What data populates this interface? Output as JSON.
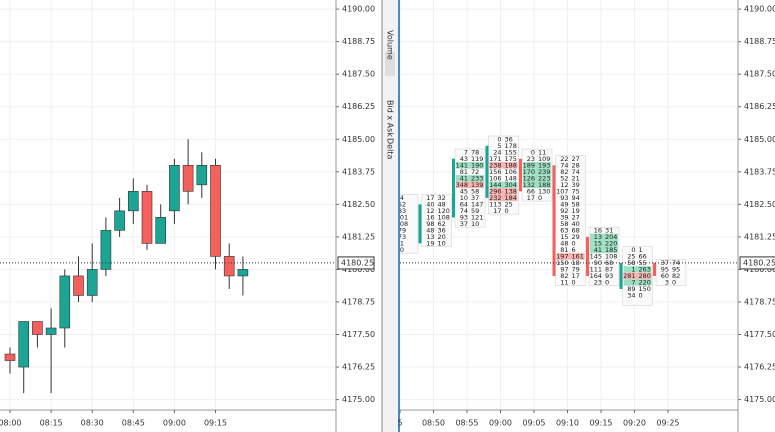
{
  "chart_data": [
    {
      "type": "candlestick",
      "categories": [
        "08:00",
        null,
        null,
        "08:15",
        null,
        null,
        "08:30",
        null,
        null,
        "08:45",
        null,
        null,
        "09:00",
        null,
        null,
        "09:15",
        null,
        null
      ],
      "open": [
        4176.75,
        4176.25,
        4178.0,
        4177.5,
        4177.75,
        4179.75,
        4179.0,
        4180.0,
        4181.5,
        4182.25,
        4183.0,
        4181.0,
        4182.25,
        4184.0,
        4183.25,
        4184.0,
        4180.5,
        4179.75
      ],
      "high": [
        4177.0,
        4178.0,
        4178.0,
        4178.5,
        4180.0,
        4180.5,
        4181.0,
        4182.0,
        4182.75,
        4183.5,
        4183.25,
        4182.5,
        4184.25,
        4185.0,
        4184.5,
        4184.25,
        4181.0,
        4180.5
      ],
      "low": [
        4176.0,
        4175.25,
        4177.0,
        4175.25,
        4177.0,
        4178.75,
        4178.75,
        4179.75,
        4181.25,
        4181.75,
        4180.75,
        4181.0,
        4181.75,
        4182.5,
        4182.75,
        4180.0,
        4179.25,
        4179.0
      ],
      "close": [
        4176.5,
        4178.0,
        4177.5,
        4177.75,
        4179.75,
        4179.0,
        4180.0,
        4181.5,
        4182.25,
        4183.0,
        4181.0,
        4182.0,
        4184.0,
        4183.0,
        4184.0,
        4180.5,
        4179.75,
        4180.0
      ],
      "up_color": "#1aa595",
      "down_color": "#f4605b",
      "ylim": [
        4174.6,
        4190.35
      ],
      "yticks": [
        {
          "value": 4175,
          "label": "4175.00"
        },
        {
          "value": 4176.25,
          "label": "4176.25"
        },
        {
          "value": 4177.5,
          "label": "4177.50"
        },
        {
          "value": 4178.75,
          "label": "4178.75"
        },
        {
          "value": 4180,
          "label": "4180.00"
        },
        {
          "value": 4181.25,
          "label": "4181.25"
        },
        {
          "value": 4182.5,
          "label": "4182.50"
        },
        {
          "value": 4183.75,
          "label": "4183.75"
        },
        {
          "value": 4185,
          "label": "4185.00"
        },
        {
          "value": 4186.25,
          "label": "4186.25"
        },
        {
          "value": 4187.5,
          "label": "4187.50"
        },
        {
          "value": 4188.75,
          "label": "4188.75"
        },
        {
          "value": 4190,
          "label": "4190.00"
        }
      ],
      "last_price": {
        "value": 4180.25,
        "label": "4180.25"
      },
      "grid": true
    },
    {
      "type": "footprint",
      "categories": [
        "5",
        "08:50",
        "08:55",
        "09:00",
        "09:05",
        "09:10",
        "09:15",
        "09:20",
        "09:25"
      ],
      "open": [
        4180.75,
        4181.0,
        4182.0,
        4182.75,
        4184.25,
        4184.0,
        4181.25,
        4179.25,
        4180.25
      ],
      "high": [
        4182.75,
        4182.75,
        4184.5,
        4185.0,
        4184.5,
        4184.25,
        4181.5,
        4180.75,
        4180.25
      ],
      "low": [
        4180.75,
        4181.0,
        4181.75,
        4182.25,
        4182.75,
        4179.5,
        4179.5,
        4178.75,
        4179.5
      ],
      "close": [
        4181.5,
        4182.5,
        4184.25,
        4184.75,
        4183.0,
        4179.75,
        4179.75,
        4180.25,
        4179.75
      ],
      "cells": [
        [
          [
            4
          ],
          [
            52
          ],
          [
            83
          ],
          [
            101
          ],
          [
            108
          ],
          [
            79
          ],
          [
            73
          ],
          [
            1
          ],
          [
            0
          ]
        ],
        [
          [
            17,
            32
          ],
          [
            40,
            48
          ],
          [
            12,
            120
          ],
          [
            16,
            108
          ],
          [
            98,
            62
          ],
          [
            48,
            36
          ],
          [
            13,
            20
          ],
          [
            19,
            10
          ]
        ],
        [
          [
            7,
            78
          ],
          [
            43,
            119
          ],
          [
            141,
            190
          ],
          [
            81,
            72
          ],
          [
            41,
            233
          ],
          [
            348,
            139
          ],
          [
            45,
            58
          ],
          [
            10,
            37
          ],
          [
            64,
            147
          ],
          [
            74,
            59
          ],
          [
            93,
            121
          ],
          [
            37,
            10
          ]
        ],
        [
          [
            0,
            36
          ],
          [
            5,
            178
          ],
          [
            24,
            155
          ],
          [
            171,
            175
          ],
          [
            238,
            188
          ],
          [
            156,
            106
          ],
          [
            106,
            148
          ],
          [
            144,
            304
          ],
          [
            296,
            138
          ],
          [
            232,
            184
          ],
          [
            113,
            25
          ],
          [
            17,
            0
          ]
        ],
        [
          [
            0,
            11
          ],
          [
            23,
            109
          ],
          [
            189,
            193
          ],
          [
            170,
            239
          ],
          [
            126,
            223
          ],
          [
            132,
            188
          ],
          [
            66,
            130
          ],
          [
            17,
            0
          ]
        ],
        [
          [
            22,
            27
          ],
          [
            74,
            28
          ],
          [
            82,
            74
          ],
          [
            52,
            21
          ],
          [
            12,
            39
          ],
          [
            107,
            75
          ],
          [
            93,
            94
          ],
          [
            49,
            58
          ],
          [
            92,
            19
          ],
          [
            39,
            27
          ],
          [
            58,
            40
          ],
          [
            63,
            68
          ],
          [
            15,
            29
          ],
          [
            48,
            0
          ],
          [
            81,
            6
          ],
          [
            197,
            161
          ],
          [
            150,
            18
          ],
          [
            97,
            79
          ],
          [
            82,
            17
          ],
          [
            11,
            0
          ]
        ],
        [
          [
            16,
            31
          ],
          [
            13,
            204
          ],
          [
            15,
            220
          ],
          [
            41,
            185
          ],
          [
            145,
            108
          ],
          [
            90,
            68
          ],
          [
            111,
            87
          ],
          [
            164,
            93
          ],
          [
            23,
            0
          ]
        ],
        [
          [
            0,
            1
          ],
          [
            25,
            66
          ],
          [
            58,
            55
          ],
          [
            1,
            263
          ],
          [
            281,
            280
          ],
          [
            7,
            220
          ],
          [
            89,
            150
          ],
          [
            34,
            0
          ]
        ],
        [
          [
            37,
            74
          ],
          [
            95,
            95
          ],
          [
            60,
            82
          ],
          [
            3,
            0
          ]
        ]
      ],
      "up_color": "#1aa595",
      "down_color": "#f4605b",
      "ylim": [
        4174.6,
        4190.35
      ],
      "yticks": [
        {
          "value": 4175,
          "label": "4175.00"
        },
        {
          "value": 4176.25,
          "label": "4176.25"
        },
        {
          "value": 4177.5,
          "label": "4177.50"
        },
        {
          "value": 4178.75,
          "label": "4178.75"
        },
        {
          "value": 4180,
          "label": "4180.00"
        },
        {
          "value": 4181.25,
          "label": "4181.25"
        },
        {
          "value": 4182.5,
          "label": "4182.50"
        },
        {
          "value": 4183.75,
          "label": "4183.75"
        },
        {
          "value": 4185,
          "label": "4185.00"
        },
        {
          "value": 4186.25,
          "label": "4186.25"
        },
        {
          "value": 4187.5,
          "label": "4187.50"
        },
        {
          "value": 4188.75,
          "label": "4188.75"
        },
        {
          "value": 4190,
          "label": "4190.00"
        }
      ],
      "last_price": {
        "value": 4180.25,
        "label": "4180.25"
      },
      "grid": true
    }
  ],
  "toolbar": {
    "labels": [
      "Volume",
      "Bid x Ask",
      "Delta"
    ]
  }
}
